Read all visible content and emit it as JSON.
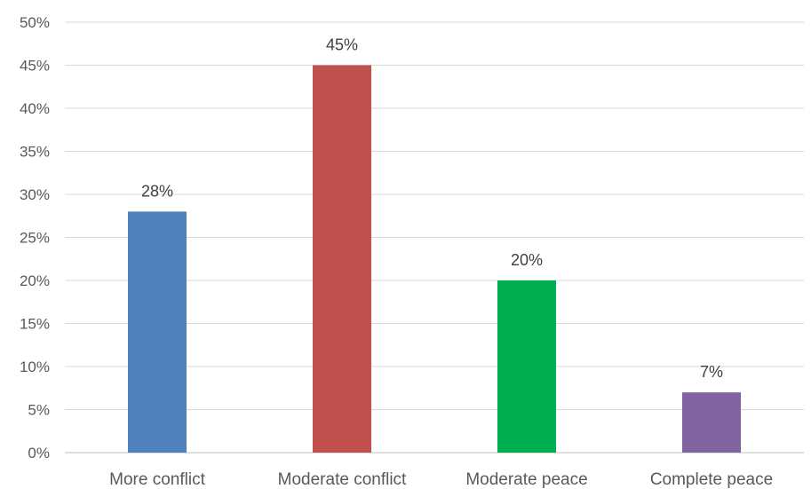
{
  "chart_data": {
    "type": "bar",
    "title": "",
    "xlabel": "",
    "ylabel": "",
    "categories": [
      "More conflict",
      "Moderate conflict",
      "Moderate peace",
      "Complete peace"
    ],
    "values": [
      28,
      45,
      20,
      7
    ],
    "data_labels": [
      "28%",
      "45%",
      "20%",
      "7%"
    ],
    "colors": [
      "#4f81bd",
      "#c0504d",
      "#00b050",
      "#8064a2"
    ],
    "ylim": [
      0,
      50
    ],
    "yticks": [
      0,
      5,
      10,
      15,
      20,
      25,
      30,
      35,
      40,
      45,
      50
    ],
    "ytick_labels": [
      "0%",
      "5%",
      "10%",
      "15%",
      "20%",
      "25%",
      "30%",
      "35%",
      "40%",
      "45%",
      "50%"
    ],
    "grid": true,
    "legend": "none",
    "gridline_color": "#d9d9d9"
  }
}
